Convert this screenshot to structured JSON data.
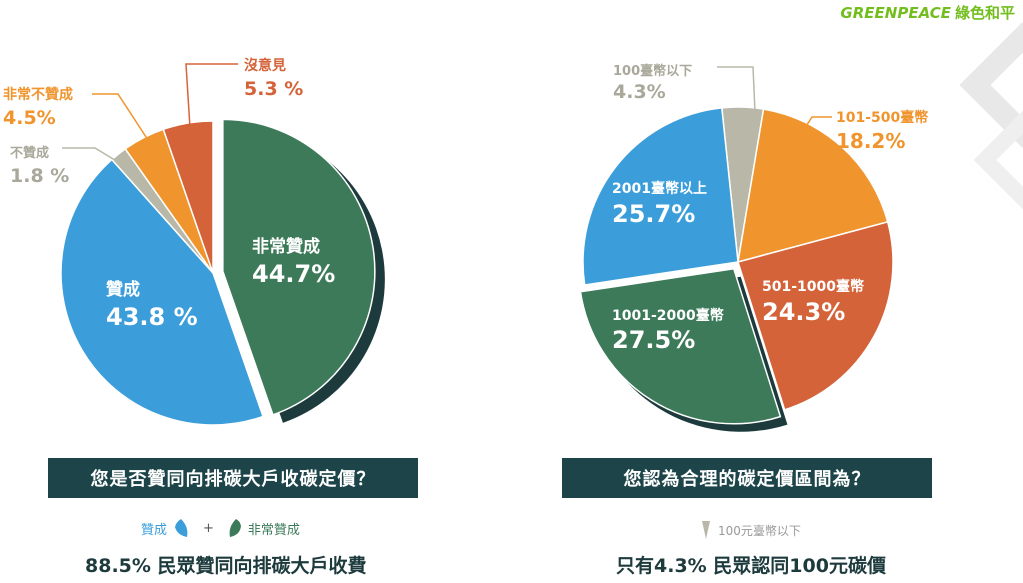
{
  "brand": {
    "name_en": "GREENPEACE",
    "name_zh": "綠色和平"
  },
  "colors": {
    "support": "#3b9edb",
    "strong_support": "#3d7a5a",
    "oppose": "#b9b8a8",
    "strong_oppose": "#f0952e",
    "no_opinion": "#d4633a",
    "dark_bar": "#1d4549"
  },
  "left": {
    "question": "您是否贊同向排碳大戶收碳定價？",
    "legend": {
      "a": "贊成",
      "plus": "+",
      "b": "非常贊成"
    },
    "summary": "88.5% 民眾贊同向排碳大戶收費"
  },
  "right": {
    "question": "您認為合理的碳定價區間為？",
    "legend": {
      "a": "100元臺幣以下"
    },
    "summary": "只有4.3% 民眾認同100元碳價"
  },
  "chart_data": [
    {
      "type": "pie",
      "slices": [
        {
          "label": "非常贊成",
          "value_label": "44.7%",
          "value": 44.7,
          "color": "#3d7a5a"
        },
        {
          "label": "贊成",
          "value_label": "43.8 %",
          "value": 43.8,
          "color": "#3b9edb"
        },
        {
          "label": "不贊成",
          "value_label": "1.8 %",
          "value": 1.8,
          "color": "#b9b8a8"
        },
        {
          "label": "非常不贊成",
          "value_label": "4.5%",
          "value": 4.5,
          "color": "#f0952e"
        },
        {
          "label": "沒意見",
          "value_label": "5.3 %",
          "value": 5.3,
          "color": "#d4633a"
        }
      ]
    },
    {
      "type": "pie",
      "slices": [
        {
          "label": "100臺幣以下",
          "value_label": "4.3%",
          "value": 4.3,
          "color": "#b9b8a8"
        },
        {
          "label": "101-500臺幣",
          "value_label": "18.2%",
          "value": 18.2,
          "color": "#f0952e"
        },
        {
          "label": "501-1000臺幣",
          "value_label": "24.3%",
          "value": 24.3,
          "color": "#d4633a"
        },
        {
          "label": "1001-2000臺幣",
          "value_label": "27.5%",
          "value": 27.5,
          "color": "#3d7a5a"
        },
        {
          "label": "2001臺幣以上",
          "value_label": "25.7%",
          "value": 25.7,
          "color": "#3b9edb"
        }
      ]
    }
  ]
}
